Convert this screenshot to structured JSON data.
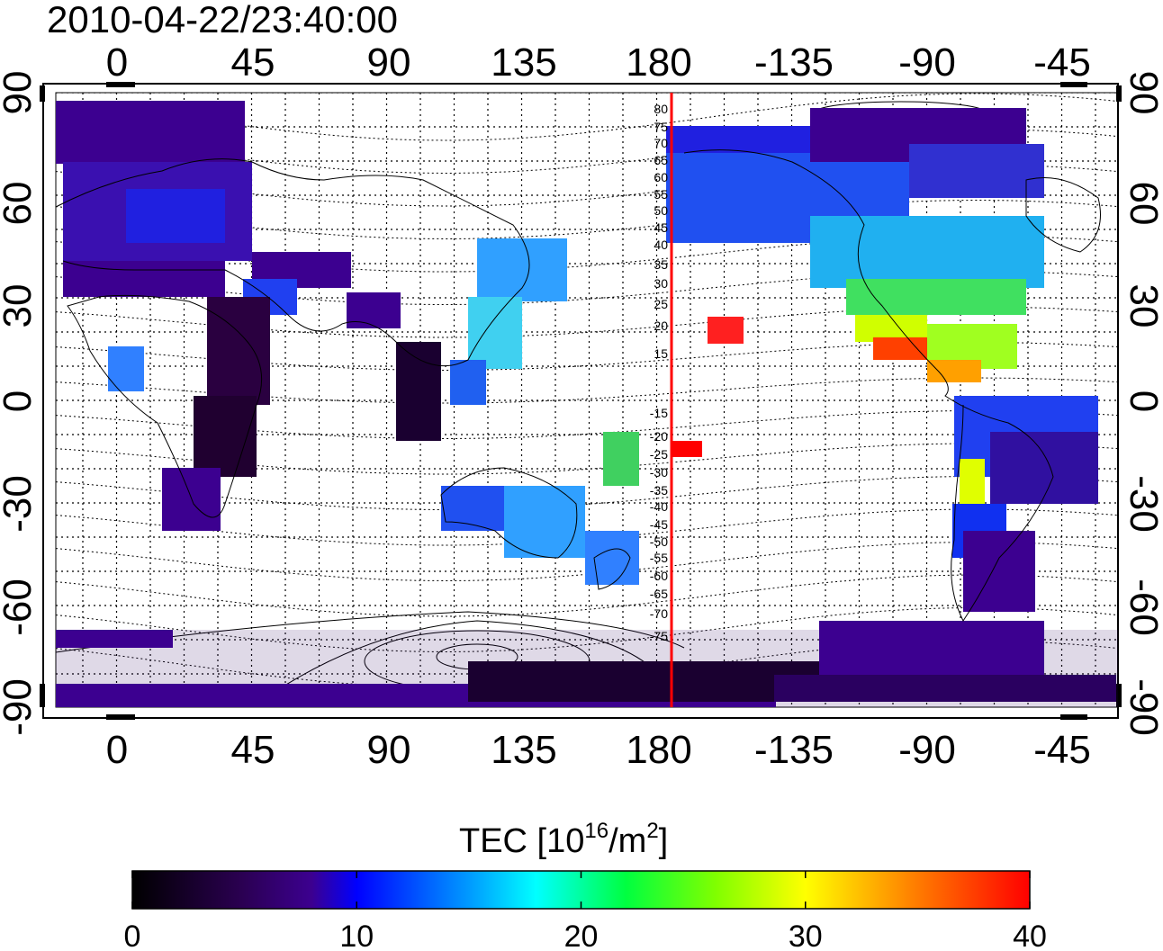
{
  "timestamp": "2010-04-22/23:40:00",
  "lon_ticks": [
    "0",
    "45",
    "90",
    "135",
    "180",
    "-135",
    "-90",
    "-45"
  ],
  "lat_ticks": [
    "90",
    "60",
    "30",
    "0",
    "-30",
    "-60",
    "-90"
  ],
  "contour_labels": [
    "80",
    "75",
    "70",
    "65",
    "60",
    "55",
    "50",
    "45",
    "40",
    "35",
    "30",
    "25",
    "20",
    "15",
    "-15",
    "-20",
    "-25",
    "-30",
    "-35",
    "-40",
    "-45",
    "-50",
    "-55",
    "-60",
    "-65",
    "-70",
    "-75"
  ],
  "colorbar": {
    "title_main": "TEC  [10",
    "title_sup1": "16",
    "title_mid": "/m",
    "title_sup2": "2",
    "title_end": "]",
    "ticks": [
      "0",
      "10",
      "20",
      "30",
      "40"
    ],
    "min": 0,
    "max": 40
  },
  "meridian_marker_color": "#ff0000",
  "colors": {
    "low": "#000000",
    "mid": "#00ffff",
    "high": "#ff0000"
  }
}
